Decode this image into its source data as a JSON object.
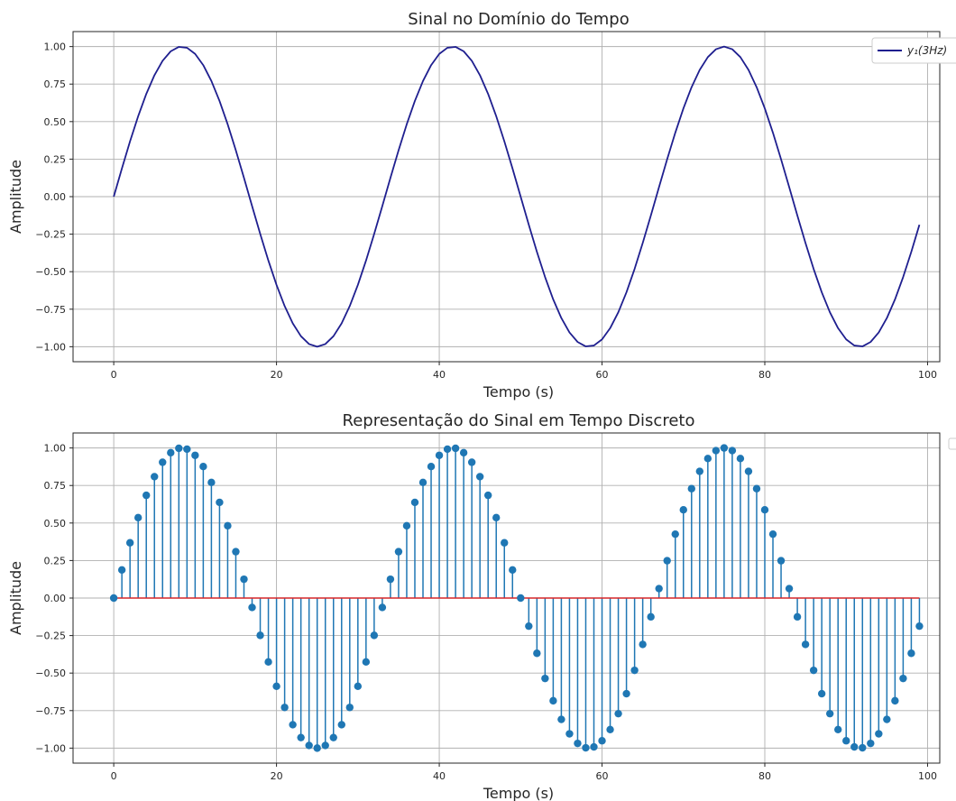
{
  "chart_data": [
    {
      "type": "line",
      "title": "Sinal no Domínio do Tempo",
      "xlabel": "Tempo (s)",
      "ylabel": "Amplitude",
      "xlim": [
        -5,
        101.5
      ],
      "ylim": [
        -1.1,
        1.1
      ],
      "xticks": [
        0,
        20,
        40,
        60,
        80,
        100
      ],
      "xtick_labels": [
        "0",
        "20",
        "40",
        "60",
        "80",
        "100"
      ],
      "yticks": [
        1.0,
        0.75,
        0.5,
        0.25,
        0.0,
        -0.25,
        -0.5,
        -0.75,
        -1.0
      ],
      "ytick_labels": [
        "1.00",
        "0.75",
        "0.50",
        "0.25",
        "0.00",
        "−0.25",
        "−0.50",
        "−0.75",
        "−1.00"
      ],
      "grid": true,
      "legend": "top-right",
      "series": [
        {
          "name": "y₁(3Hz)",
          "color": "#1f1f8f",
          "x_start": 0,
          "x_end": 99,
          "x_step": 1,
          "y": [
            0.0,
            0.1874,
            0.3681,
            0.5358,
            0.6845,
            0.809,
            0.9048,
            0.9686,
            0.998,
            0.9921,
            0.9511,
            0.8763,
            0.7705,
            0.6374,
            0.4818,
            0.309,
            0.1253,
            -0.0628,
            -0.2487,
            -0.4258,
            -0.5878,
            -0.729,
            -0.8443,
            -0.9298,
            -0.9823,
            -1.0,
            -0.9823,
            -0.9298,
            -0.8443,
            -0.729,
            -0.5878,
            -0.4258,
            -0.2487,
            -0.0628,
            0.1253,
            0.309,
            0.4818,
            0.6374,
            0.7705,
            0.8763,
            0.9511,
            0.9921,
            0.998,
            0.9686,
            0.9048,
            0.809,
            0.6845,
            0.5358,
            0.3681,
            0.1874,
            0.0,
            -0.1874,
            -0.3681,
            -0.5358,
            -0.6845,
            -0.809,
            -0.9048,
            -0.9686,
            -0.998,
            -0.9921,
            -0.9511,
            -0.8763,
            -0.7705,
            -0.6374,
            -0.4818,
            -0.309,
            -0.1253,
            0.0628,
            0.2487,
            0.4258,
            0.5878,
            0.729,
            0.8443,
            0.9298,
            0.9823,
            1.0,
            0.9823,
            0.9298,
            0.8443,
            0.729,
            0.5878,
            0.4258,
            0.2487,
            0.0628,
            -0.1253,
            -0.309,
            -0.4818,
            -0.6374,
            -0.7705,
            -0.8763,
            -0.9511,
            -0.9921,
            -0.998,
            -0.9686,
            -0.9048,
            -0.809,
            -0.6845,
            -0.5358,
            -0.3681,
            -0.1874
          ]
        }
      ]
    },
    {
      "type": "stem",
      "title": "Representação do Sinal em Tempo Discreto",
      "xlabel": "Tempo (s)",
      "ylabel": "Amplitude",
      "xlim": [
        -5,
        101.5
      ],
      "ylim": [
        -1.1,
        1.1
      ],
      "xticks": [
        0,
        20,
        40,
        60,
        80,
        100
      ],
      "xtick_labels": [
        "0",
        "20",
        "40",
        "60",
        "80",
        "100"
      ],
      "yticks": [
        1.0,
        0.75,
        0.5,
        0.25,
        0.0,
        -0.25,
        -0.5,
        -0.75,
        -1.0
      ],
      "ytick_labels": [
        "1.00",
        "0.75",
        "0.50",
        "0.25",
        "0.00",
        "−0.25",
        "−0.50",
        "−0.75",
        "−1.00"
      ],
      "grid": true,
      "legend": "top-right (empty)",
      "stem_color": "#1f77b4",
      "baseline_color": "#d62728",
      "series_ref": "same samples as first chart"
    }
  ]
}
